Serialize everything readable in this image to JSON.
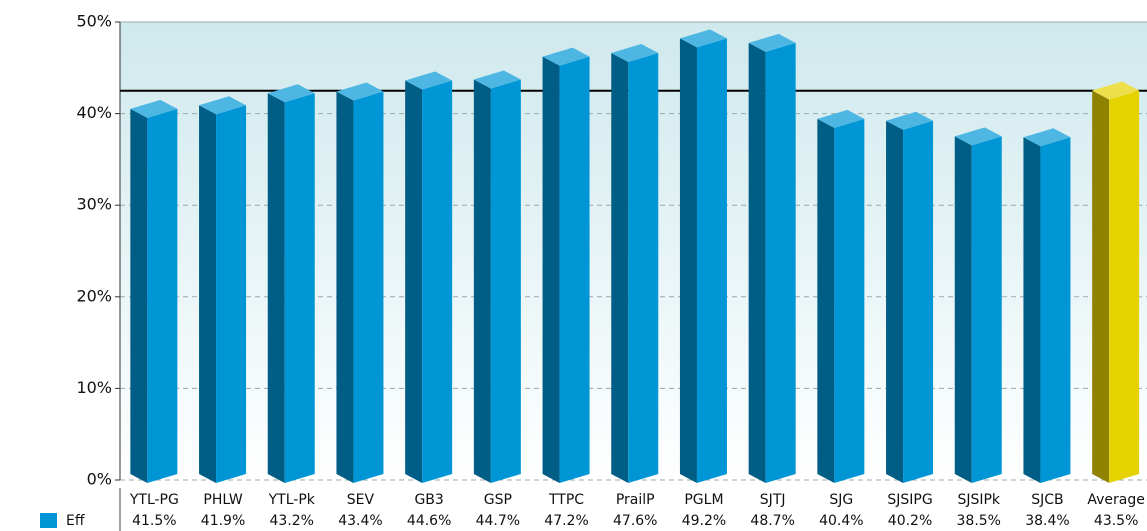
{
  "chart_data": {
    "type": "bar3d",
    "categories": [
      "YTL-PG",
      "PHLW",
      "YTL-Pk",
      "SEV",
      "GB3",
      "GSP",
      "TTPC",
      "PrailP",
      "PGLM",
      "SJTJ",
      "SJG",
      "SJSIPG",
      "SJSIPk",
      "SJCB",
      "Average"
    ],
    "series": [
      {
        "name": "Eff",
        "color": "#0096d6",
        "values": [
          41.5,
          41.9,
          43.2,
          43.4,
          44.6,
          44.7,
          47.2,
          47.6,
          49.2,
          48.7,
          40.4,
          40.2,
          38.5,
          38.4,
          43.5
        ],
        "value_labels": [
          "41.5%",
          "41.9%",
          "43.2%",
          "43.4%",
          "44.6%",
          "44.7%",
          "47.2%",
          "47.6%",
          "49.2%",
          "48.7%",
          "40.4%",
          "40.2%",
          "38.5%",
          "38.4%",
          "43.5%"
        ]
      }
    ],
    "highlight_category": "Average",
    "highlight_color": "#e6d200",
    "reference_line": 42.5,
    "ylim": [
      0,
      50
    ],
    "yticks": [
      {
        "value": 0,
        "label": "0%"
      },
      {
        "value": 10,
        "label": "10%"
      },
      {
        "value": 20,
        "label": "20%"
      },
      {
        "value": 30,
        "label": "30%"
      },
      {
        "value": 40,
        "label": "40%"
      },
      {
        "value": 50,
        "label": "50%"
      }
    ],
    "grid": true
  }
}
